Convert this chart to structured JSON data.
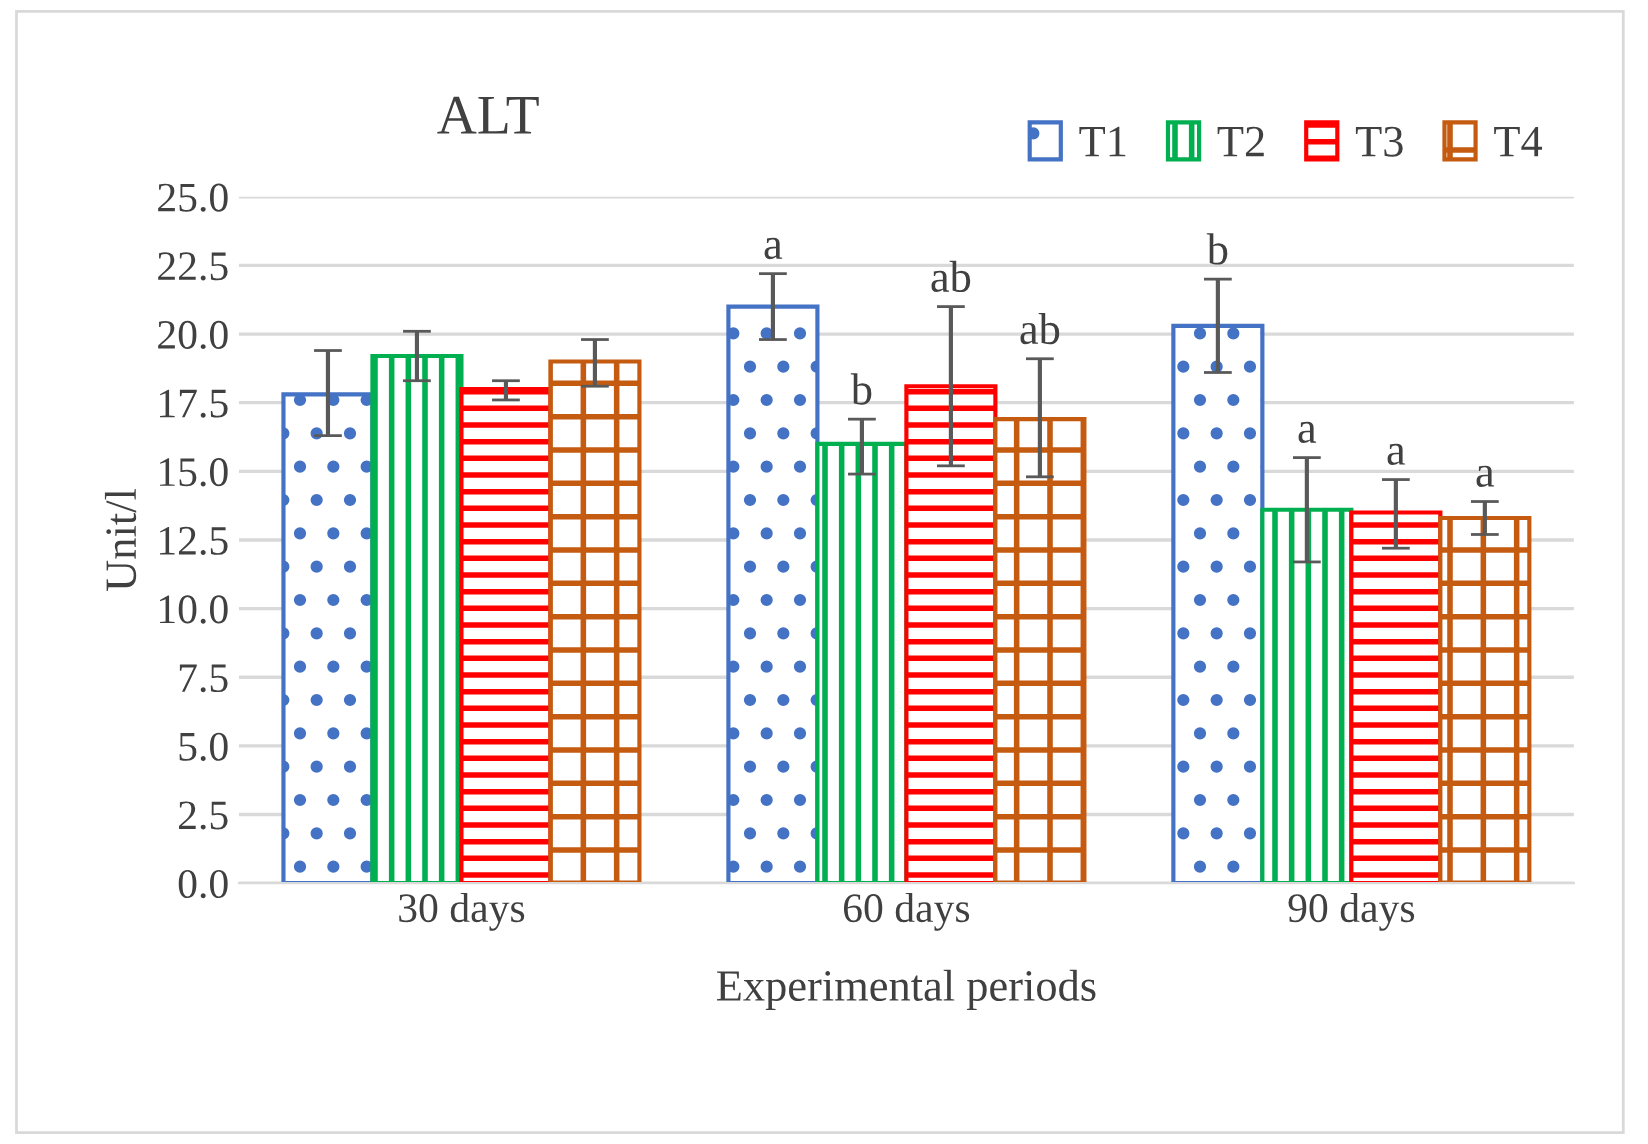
{
  "chart_data": {
    "type": "bar",
    "title": "ALT",
    "xlabel": "Experimental periods",
    "ylabel": "Unit/l",
    "categories": [
      "30 days",
      "60 days",
      "90 days"
    ],
    "series": [
      {
        "name": "T1",
        "color": "#4472c4",
        "values": [
          17.8,
          21.0,
          20.3
        ],
        "errors": [
          [
            16.3,
            19.4
          ],
          [
            19.8,
            22.2
          ],
          [
            18.6,
            22.0
          ]
        ],
        "value_labels": [
          null,
          "a",
          "b"
        ]
      },
      {
        "name": "T2",
        "color": "#00b050",
        "values": [
          19.2,
          16.0,
          13.6
        ],
        "errors": [
          [
            18.3,
            20.1
          ],
          [
            14.9,
            16.9
          ],
          [
            11.7,
            15.5
          ]
        ],
        "value_labels": [
          null,
          "b",
          "a"
        ]
      },
      {
        "name": "T3",
        "color": "#ff0000",
        "values": [
          18.0,
          18.1,
          13.5
        ],
        "errors": [
          [
            17.6,
            18.3
          ],
          [
            15.2,
            21.0
          ],
          [
            12.2,
            14.7
          ]
        ],
        "value_labels": [
          null,
          "ab",
          "a"
        ]
      },
      {
        "name": "T4",
        "color": "#c55a11",
        "values": [
          19.0,
          16.9,
          13.3
        ],
        "errors": [
          [
            18.1,
            19.8
          ],
          [
            14.8,
            19.1
          ],
          [
            12.7,
            13.9
          ]
        ],
        "value_labels": [
          null,
          "ab",
          "a"
        ]
      }
    ],
    "ylim": [
      0,
      25
    ],
    "yticks": [
      {
        "value": 0,
        "label": "0.0"
      },
      {
        "value": 2.5,
        "label": "2.5"
      },
      {
        "value": 5,
        "label": "5.0"
      },
      {
        "value": 7.5,
        "label": "7.5"
      },
      {
        "value": 10,
        "label": "10.0"
      },
      {
        "value": 12.5,
        "label": "12.5"
      },
      {
        "value": 15,
        "label": "15.0"
      },
      {
        "value": 17.5,
        "label": "17.5"
      },
      {
        "value": 20,
        "label": "20.0"
      },
      {
        "value": 22.5,
        "label": "22.5"
      },
      {
        "value": 25,
        "label": "25.0"
      }
    ],
    "grid": "y",
    "legend": "top right"
  }
}
